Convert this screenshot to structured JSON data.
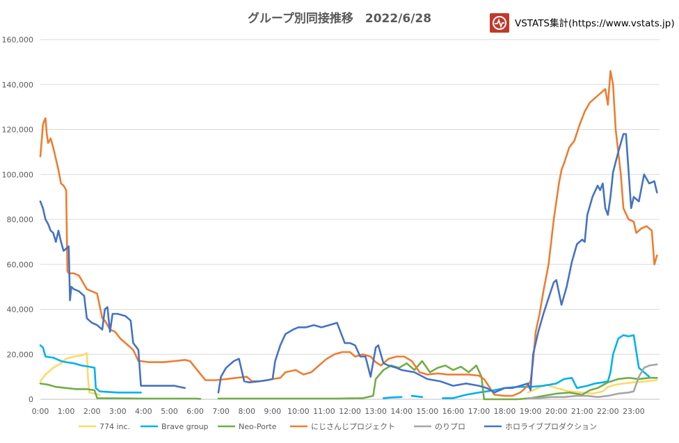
{
  "header": {
    "brand_text": "VSTATS集計(https://www.vstats.jp)",
    "brand_icon": "pulse-icon",
    "brand_color": "#c0392b"
  },
  "chart_data": {
    "type": "line",
    "title": "グループ別同接推移　2022/6/28",
    "xlabel": "",
    "ylabel": "",
    "xlim": [
      0,
      24
    ],
    "ylim": [
      0,
      160000
    ],
    "y_ticks": [
      0,
      20000,
      40000,
      60000,
      80000,
      100000,
      120000,
      140000,
      160000
    ],
    "y_tick_labels": [
      "0",
      "20,000",
      "40,000",
      "60,000",
      "80,000",
      "100,000",
      "120,000",
      "140,000",
      "160,000"
    ],
    "x_ticks": [
      0,
      1,
      2,
      3,
      4,
      5,
      6,
      7,
      8,
      9,
      10,
      11,
      12,
      13,
      14,
      15,
      16,
      17,
      18,
      19,
      20,
      21,
      22,
      23
    ],
    "x_tick_labels": [
      "0:00",
      "1:00",
      "2:00",
      "3:00",
      "4:00",
      "5:00",
      "6:00",
      "7:00",
      "8:00",
      "9:00",
      "10:00",
      "11:00",
      "12:00",
      "13:00",
      "14:00",
      "15:00",
      "16:00",
      "17:00",
      "18:00",
      "19:00",
      "20:00",
      "21:00",
      "22:00",
      "23:00"
    ],
    "grid": "horizontal",
    "legend": "bottom",
    "series": [
      {
        "name": "774 inc.",
        "color": "#FFD966",
        "x": [
          0,
          0.2,
          0.5,
          0.8,
          1.0,
          1.3,
          1.6,
          1.8,
          1.85,
          1.9,
          2.3,
          18.9,
          19.3,
          19.6,
          20.0,
          20.5,
          21.0,
          21.4,
          21.8,
          22.0,
          22.3,
          22.6,
          23.0,
          23.5,
          23.9
        ],
        "values": [
          8000,
          11000,
          14000,
          16000,
          18000,
          19000,
          19500,
          20500,
          9000,
          3000,
          2000,
          3000,
          5000,
          6500,
          5000,
          3500,
          3000,
          2500,
          3500,
          5500,
          6500,
          7000,
          7500,
          8000,
          8500
        ],
        "segments": [
          [
            0,
            1.9
          ],
          [
            1.9,
            2.3
          ],
          [
            18.9,
            23.9
          ]
        ]
      },
      {
        "name": "Brave group",
        "color": "#00B0F0",
        "x": [
          0,
          0.1,
          0.2,
          0.5,
          0.8,
          1.0,
          1.3,
          1.6,
          1.9,
          2.1,
          2.15,
          2.3,
          3.0,
          3.5,
          3.9,
          13.3,
          13.6,
          14.0,
          14.4,
          14.8,
          15.2,
          15.6,
          16.0,
          16.5,
          17.0,
          17.3,
          17.6,
          18.0,
          18.5,
          19.0,
          19.5,
          20.0,
          20.3,
          20.6,
          20.8,
          21.2,
          21.5,
          21.8,
          22.0,
          22.1,
          22.2,
          22.4,
          22.6,
          22.8,
          23.0,
          23.2,
          23.4,
          23.6
        ],
        "values": [
          24000,
          23000,
          19000,
          18500,
          17000,
          16500,
          16000,
          15000,
          14500,
          14000,
          5000,
          3500,
          3000,
          3000,
          3000,
          500,
          800,
          1000,
          1500,
          1000,
          1000,
          500,
          500,
          2000,
          3000,
          3500,
          4000,
          5000,
          5500,
          5500,
          6000,
          7000,
          9000,
          9500,
          5000,
          6000,
          7000,
          7500,
          8000,
          12000,
          20000,
          27000,
          28500,
          28000,
          28500,
          14000,
          12000,
          10000
        ],
        "segments": [
          [
            0,
            3.9
          ],
          [
            13.3,
            14.0
          ],
          [
            14.4,
            14.8
          ],
          [
            15.6,
            23.6
          ]
        ]
      },
      {
        "name": "Neo-Porte",
        "color": "#70AD47",
        "x": [
          0,
          0.3,
          0.6,
          1.0,
          1.4,
          1.8,
          2.1,
          2.2,
          3.0,
          4.0,
          5.0,
          6.0,
          6.2,
          6.9,
          7.5,
          8.5,
          9.5,
          10.5,
          11.5,
          12.5,
          12.9,
          13.0,
          13.3,
          13.6,
          13.9,
          14.2,
          14.5,
          14.8,
          15.1,
          15.4,
          15.7,
          16.0,
          16.3,
          16.6,
          16.9,
          17.1,
          17.2,
          18.0,
          18.5,
          19.0,
          19.5,
          20.0,
          20.5,
          21.0,
          21.3,
          21.6,
          22.0,
          22.4,
          22.8,
          23.2,
          23.6,
          23.9
        ],
        "values": [
          7000,
          6500,
          5500,
          5000,
          4500,
          4500,
          4000,
          500,
          400,
          300,
          300,
          300,
          200,
          300,
          300,
          300,
          300,
          300,
          300,
          500,
          1500,
          9000,
          13000,
          15000,
          14000,
          16000,
          13000,
          17000,
          12000,
          14000,
          15000,
          13000,
          14500,
          12000,
          15000,
          10000,
          0,
          0,
          0,
          500,
          1500,
          2500,
          3000,
          2000,
          4000,
          5000,
          7500,
          9000,
          9500,
          9000,
          9500,
          9500
        ],
        "segments": [
          [
            0,
            6.2
          ],
          [
            6.9,
            23.9
          ]
        ]
      },
      {
        "name": "にじさんじプロジェクト",
        "color": "#ED7D31",
        "x": [
          0,
          0.05,
          0.1,
          0.15,
          0.2,
          0.25,
          0.3,
          0.4,
          0.5,
          0.6,
          0.7,
          0.8,
          0.9,
          1.0,
          1.05,
          1.1,
          1.3,
          1.5,
          1.6,
          1.8,
          2.0,
          2.2,
          2.4,
          2.5,
          2.7,
          2.9,
          3.1,
          3.3,
          3.6,
          3.8,
          3.9,
          4.2,
          4.8,
          5.2,
          5.6,
          5.8,
          6.4,
          6.8,
          7.2,
          7.6,
          8.0,
          8.2,
          8.5,
          8.8,
          9.0,
          9.3,
          9.5,
          9.9,
          10.2,
          10.5,
          10.8,
          11.1,
          11.4,
          11.7,
          12.0,
          12.2,
          12.5,
          12.8,
          13.0,
          13.2,
          13.5,
          13.8,
          14.1,
          14.4,
          14.7,
          15.0,
          15.4,
          15.8,
          16.2,
          16.6,
          17.0,
          17.2,
          17.6,
          18.0,
          18.3,
          18.6,
          18.8,
          19.0,
          19.1,
          19.2,
          19.35,
          19.5,
          19.7,
          19.9,
          20.1,
          20.2,
          20.3,
          20.5,
          20.7,
          20.9,
          21.1,
          21.3,
          21.5,
          21.7,
          21.9,
          22.0,
          22.1,
          22.2,
          22.3,
          22.5,
          22.6,
          22.8,
          23.0,
          23.1,
          23.3,
          23.5,
          23.7,
          23.8,
          23.9
        ],
        "values": [
          108000,
          115000,
          122000,
          124000,
          125000,
          118000,
          114000,
          116000,
          112000,
          107000,
          102000,
          96000,
          95000,
          93000,
          57000,
          56000,
          56000,
          55000,
          53000,
          49000,
          48000,
          47000,
          36000,
          35000,
          31000,
          30000,
          27000,
          25000,
          22000,
          17000,
          17000,
          16500,
          16500,
          17000,
          17500,
          17000,
          8500,
          8500,
          9000,
          9500,
          10000,
          8000,
          8000,
          8500,
          9000,
          9500,
          12000,
          13000,
          11000,
          12000,
          15000,
          18000,
          20000,
          21000,
          21000,
          19000,
          20000,
          19000,
          16500,
          15000,
          18000,
          19000,
          19000,
          17000,
          12000,
          11000,
          11500,
          11000,
          11000,
          11000,
          10500,
          9000,
          2000,
          1500,
          1500,
          3000,
          5000,
          8000,
          17000,
          30000,
          38000,
          48000,
          60000,
          80000,
          96000,
          102000,
          105000,
          112000,
          115000,
          122000,
          128000,
          132000,
          134000,
          136000,
          138000,
          131000,
          146000,
          140000,
          120000,
          100000,
          85000,
          80000,
          79000,
          74000,
          76000,
          77000,
          75000,
          60000,
          64000
        ],
        "segments": [
          [
            0,
            23.9
          ]
        ]
      },
      {
        "name": "のりプロ",
        "color": "#A5A5A5",
        "x": [
          18.9,
          19.3,
          19.8,
          20.3,
          20.8,
          21.2,
          21.6,
          22.0,
          22.4,
          22.8,
          23.0,
          23.2,
          23.4,
          23.6,
          23.9
        ],
        "values": [
          500,
          500,
          1000,
          1000,
          1500,
          1500,
          1000,
          1500,
          2500,
          3000,
          3500,
          10000,
          14000,
          15000,
          15500
        ],
        "segments": [
          [
            18.9,
            23.9
          ]
        ]
      },
      {
        "name": "ホロライブプロダクション",
        "color": "#4472C4",
        "x": [
          0,
          0.1,
          0.2,
          0.3,
          0.4,
          0.5,
          0.6,
          0.7,
          0.8,
          0.9,
          1.0,
          1.1,
          1.15,
          1.2,
          1.3,
          1.5,
          1.7,
          1.8,
          1.9,
          2.0,
          2.2,
          2.4,
          2.5,
          2.6,
          2.7,
          2.8,
          3.0,
          3.3,
          3.5,
          3.6,
          3.8,
          3.9,
          4.2,
          4.8,
          5.2,
          5.6,
          6.9,
          7.0,
          7.2,
          7.5,
          7.7,
          7.9,
          8.1,
          8.5,
          8.8,
          9.0,
          9.1,
          9.3,
          9.5,
          9.8,
          10.0,
          10.3,
          10.6,
          10.9,
          11.2,
          11.5,
          11.8,
          12.0,
          12.2,
          12.4,
          12.6,
          12.8,
          13.0,
          13.1,
          13.3,
          13.5,
          13.8,
          14.0,
          14.5,
          15.0,
          15.5,
          16.0,
          16.5,
          17.0,
          17.3,
          17.6,
          18.0,
          18.3,
          18.6,
          18.9,
          19.0,
          19.1,
          19.3,
          19.5,
          19.7,
          19.9,
          20.0,
          20.2,
          20.4,
          20.6,
          20.8,
          21.0,
          21.1,
          21.2,
          21.4,
          21.6,
          21.7,
          21.8,
          21.9,
          22.0,
          22.1,
          22.2,
          22.4,
          22.5,
          22.6,
          22.7,
          22.9,
          23.0,
          23.2,
          23.4,
          23.6,
          23.8,
          23.9
        ],
        "values": [
          88000,
          85000,
          80000,
          78000,
          75000,
          74000,
          70000,
          75000,
          70000,
          66000,
          67000,
          68000,
          44000,
          50000,
          49000,
          48000,
          46000,
          36000,
          35000,
          34000,
          33000,
          31000,
          40000,
          41000,
          30000,
          38000,
          38000,
          37000,
          35000,
          25000,
          22000,
          6000,
          6000,
          6000,
          6000,
          5000,
          3000,
          10000,
          14000,
          17000,
          18000,
          8000,
          7500,
          8000,
          8500,
          9000,
          17000,
          24000,
          29000,
          31000,
          32000,
          32000,
          33000,
          32000,
          33000,
          34000,
          25000,
          25000,
          24000,
          19000,
          19000,
          10000,
          23000,
          24000,
          16000,
          15000,
          14000,
          13000,
          12000,
          9000,
          8000,
          6000,
          7000,
          6000,
          5000,
          3000,
          5000,
          5000,
          6000,
          7000,
          4000,
          20000,
          30000,
          38000,
          45000,
          52000,
          53000,
          42000,
          50000,
          61000,
          69000,
          71000,
          70000,
          82000,
          90000,
          95000,
          93000,
          96000,
          85000,
          82000,
          90000,
          101000,
          110000,
          114000,
          118000,
          118000,
          85000,
          90000,
          88000,
          100000,
          96000,
          97000,
          92000
        ],
        "segments": [
          [
            0,
            5.6
          ],
          [
            6.9,
            23.9
          ]
        ]
      }
    ]
  }
}
